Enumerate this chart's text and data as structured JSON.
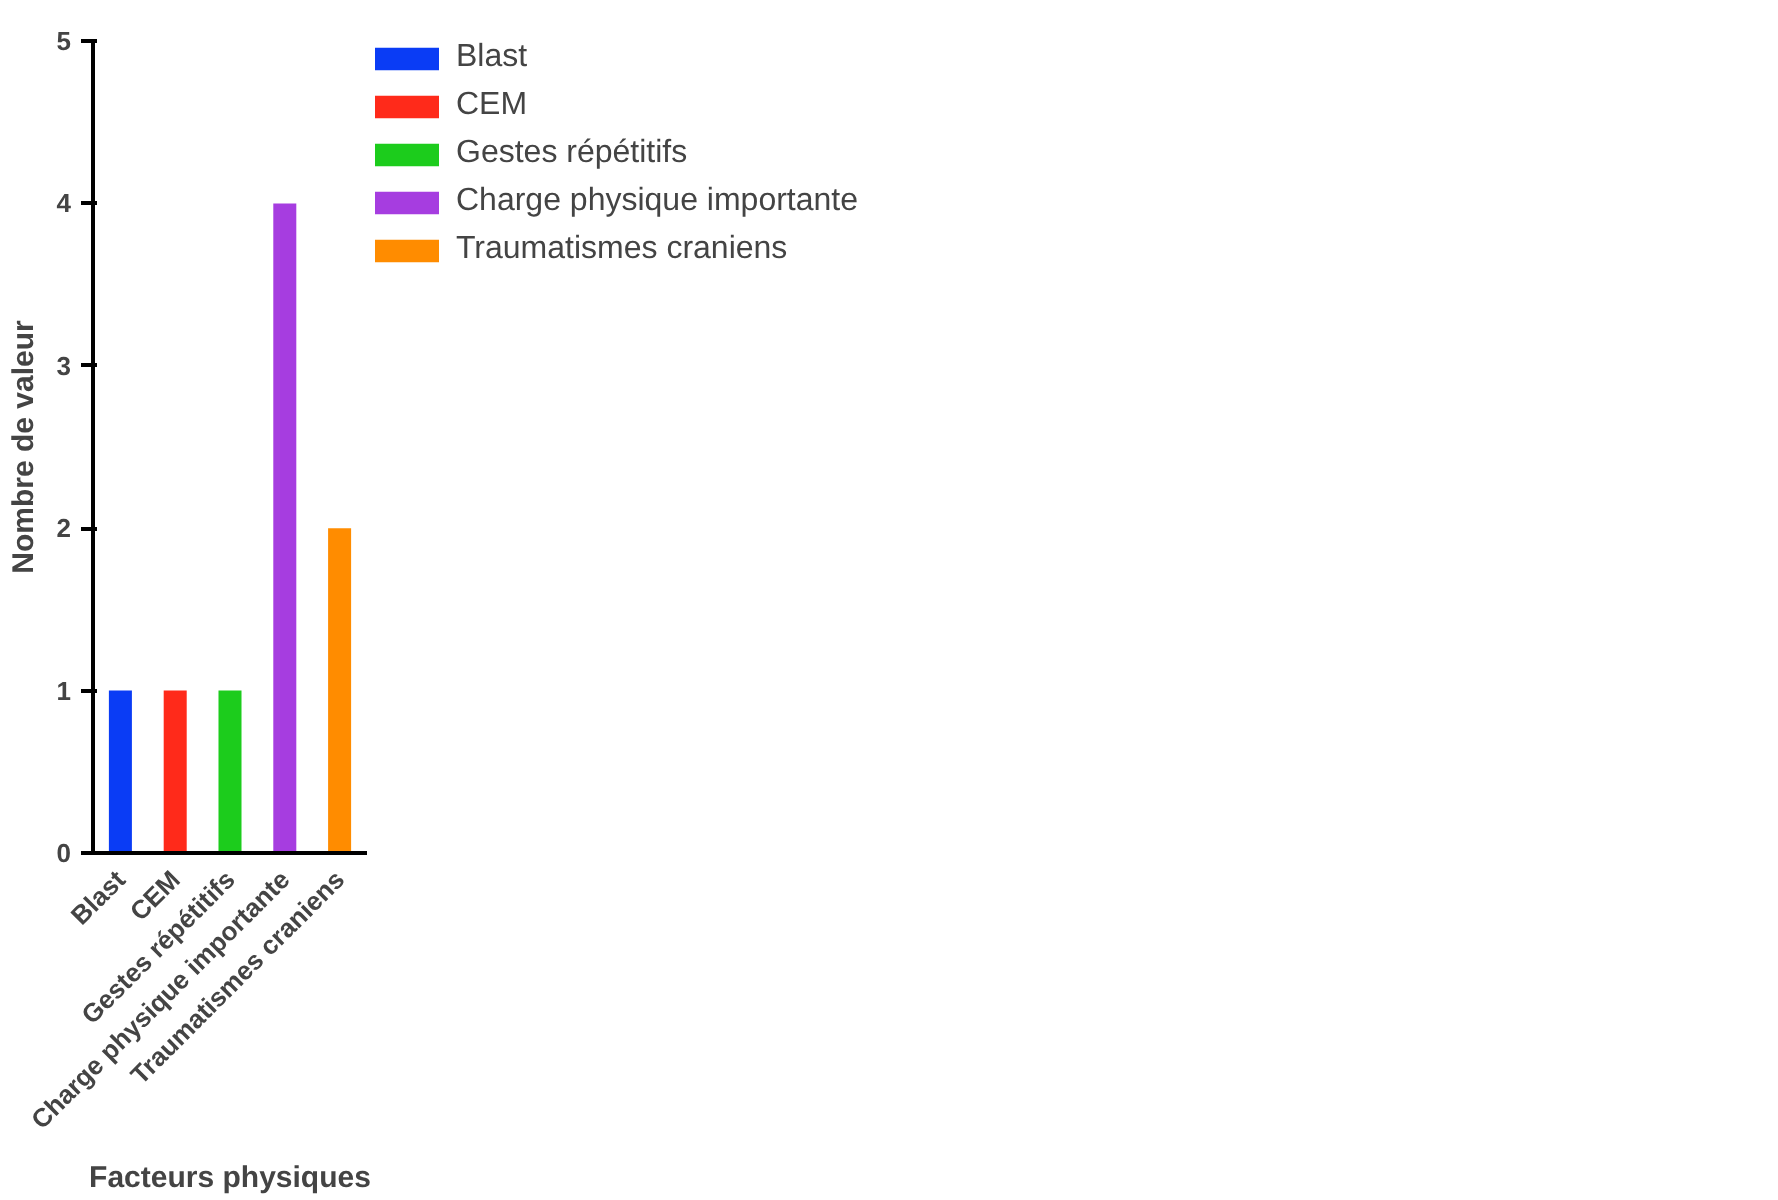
{
  "chart_data": {
    "type": "bar",
    "xlabel": "Facteurs physiques",
    "ylabel": "Nombre de valeur",
    "categories": [
      "Blast",
      "CEM",
      "Gestes répétitifs",
      "Charge physique importante",
      "Traumatismes craniens"
    ],
    "series": [
      {
        "name": "Blast",
        "color": "#0a3cf5",
        "values": [
          1,
          null,
          null,
          null,
          null
        ]
      },
      {
        "name": "CEM",
        "color": "#ff2a1a",
        "values": [
          null,
          1,
          null,
          null,
          null
        ]
      },
      {
        "name": "Gestes répétitifs",
        "color": "#1ccc1c",
        "values": [
          null,
          null,
          1,
          null,
          null
        ]
      },
      {
        "name": "Charge physique importante",
        "color": "#a63de0",
        "values": [
          null,
          null,
          null,
          4,
          null
        ]
      },
      {
        "name": "Traumatismes craniens",
        "color": "#ff8c00",
        "values": [
          null,
          null,
          null,
          null,
          2
        ]
      }
    ],
    "ylim": [
      0,
      5
    ],
    "yticks": [
      0,
      1,
      2,
      3,
      4,
      5
    ],
    "grid": false,
    "legend": "top right"
  }
}
